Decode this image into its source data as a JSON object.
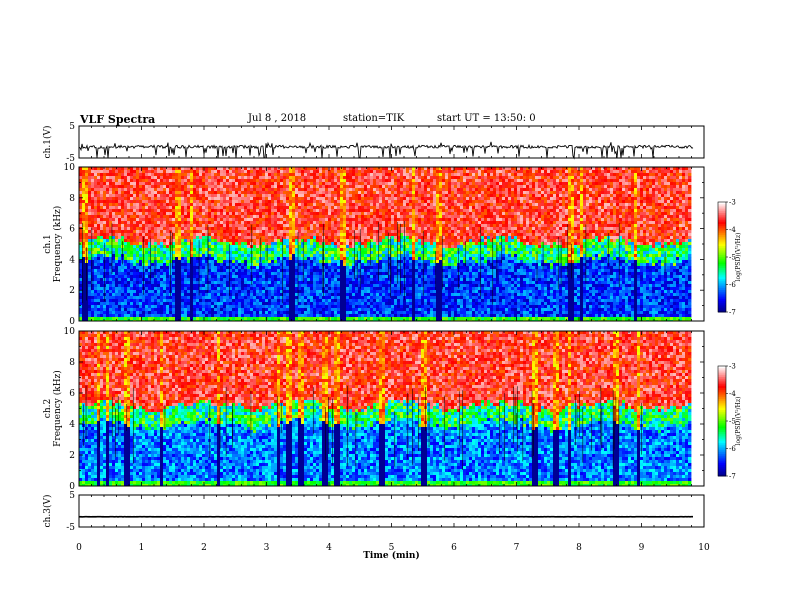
{
  "header": {
    "title": "VLF Spectra",
    "date": "Jul 8 , 2018",
    "station": "station=TIK",
    "start_ut": "start UT = 13:50: 0"
  },
  "chart_data": [
    {
      "type": "line",
      "panel": "ch1-waveform",
      "ylabel": "ch.1(V)",
      "ylim": [
        -5,
        5
      ],
      "yticks": [
        "5",
        "-5"
      ],
      "xlim": [
        0,
        10
      ],
      "baseline": -1.5,
      "data_extent_min": 9.83,
      "description": "noisy waveform with frequent negative spikes",
      "color": "#000000"
    },
    {
      "type": "heatmap",
      "panel": "ch1-spectrogram",
      "ylabel": "ch.1 Frequency (kHz)",
      "ylim": [
        0,
        10
      ],
      "yticks": [
        "0",
        "2",
        "4",
        "6",
        "8",
        "10"
      ],
      "xlim": [
        0,
        10
      ],
      "data_extent_min": 9.83,
      "colorbar": {
        "label": "log(PSD)(V²/Hz)",
        "range": [
          -7,
          -3
        ],
        "ticks": [
          "-3",
          "-4",
          "-5",
          "-6",
          "-7"
        ]
      },
      "structure": "high power (red) above ~5 kHz, low power (blue) below ~4 kHz with green/cyan transition band near 4.5 kHz; many vertical impulsive streaks"
    },
    {
      "type": "heatmap",
      "panel": "ch2-spectrogram",
      "ylabel": "ch.2 Frequency (kHz)",
      "ylim": [
        0,
        10
      ],
      "yticks": [
        "0",
        "2",
        "4",
        "6",
        "8",
        "10"
      ],
      "xlim": [
        0,
        10
      ],
      "data_extent_min": 9.83,
      "colorbar": {
        "label": "log(PSD)(V²/Hz)",
        "range": [
          -7,
          -3
        ],
        "ticks": [
          "-3",
          "-4",
          "-5",
          "-6",
          "-7"
        ]
      },
      "structure": "same as ch.1 with slightly more cyan in the low band"
    },
    {
      "type": "line",
      "panel": "ch3-waveform",
      "ylabel": "ch.3(V)",
      "ylim": [
        -5,
        5
      ],
      "yticks": [
        "5",
        "-5"
      ],
      "xlim": [
        0,
        10
      ],
      "baseline": -1.8,
      "data_extent_min": 9.83,
      "description": "nearly flat line",
      "color": "#000000"
    }
  ],
  "xaxis": {
    "label": "Time (min)",
    "ticks": [
      "0",
      "1",
      "2",
      "3",
      "4",
      "5",
      "6",
      "7",
      "8",
      "9",
      "10"
    ]
  },
  "colormap": [
    "#00007f",
    "#0000ff",
    "#00ffff",
    "#00ff00",
    "#ffff00",
    "#ff0000",
    "#ffffff"
  ]
}
